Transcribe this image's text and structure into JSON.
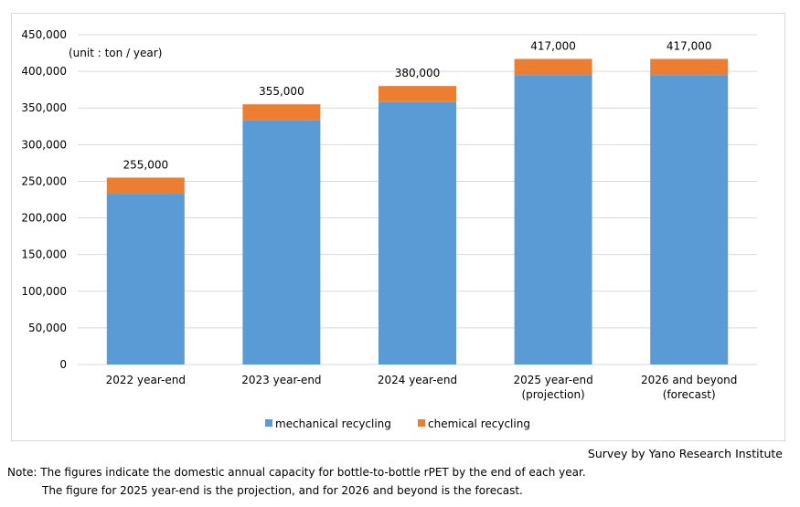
{
  "chart_data": {
    "type": "bar",
    "stacked": true,
    "categories": [
      "2022 year-end",
      "2023 year-end",
      "2024 year-end",
      "2025 year-end\n(projection)",
      "2026 and beyond\n(forecast)"
    ],
    "series": [
      {
        "name": "mechanical recycling",
        "values": [
          233000,
          333000,
          358000,
          395000,
          395000
        ],
        "color": "#5b9bd5"
      },
      {
        "name": "chemical recycling",
        "values": [
          22000,
          22000,
          22000,
          22000,
          22000
        ],
        "color": "#ed7d31"
      }
    ],
    "totals": [
      "255,000",
      "355,000",
      "380,000",
      "417,000",
      "417,000"
    ],
    "ylim": [
      0,
      450000
    ],
    "yticks": [
      "0",
      "50,000",
      "100,000",
      "150,000",
      "200,000",
      "250,000",
      "300,000",
      "350,000",
      "400,000",
      "450,000"
    ],
    "unit_label": "(unit : ton / year)",
    "grid": true,
    "legend": "bottom"
  },
  "source": "Survey by Yano Research Institute",
  "notes": [
    "Note: The figures indicate the domestic annual capacity for bottle-to-bottle rPET by the end of each year.",
    "The figure for 2025 year-end is the projection, and for 2026 and beyond is the forecast."
  ]
}
